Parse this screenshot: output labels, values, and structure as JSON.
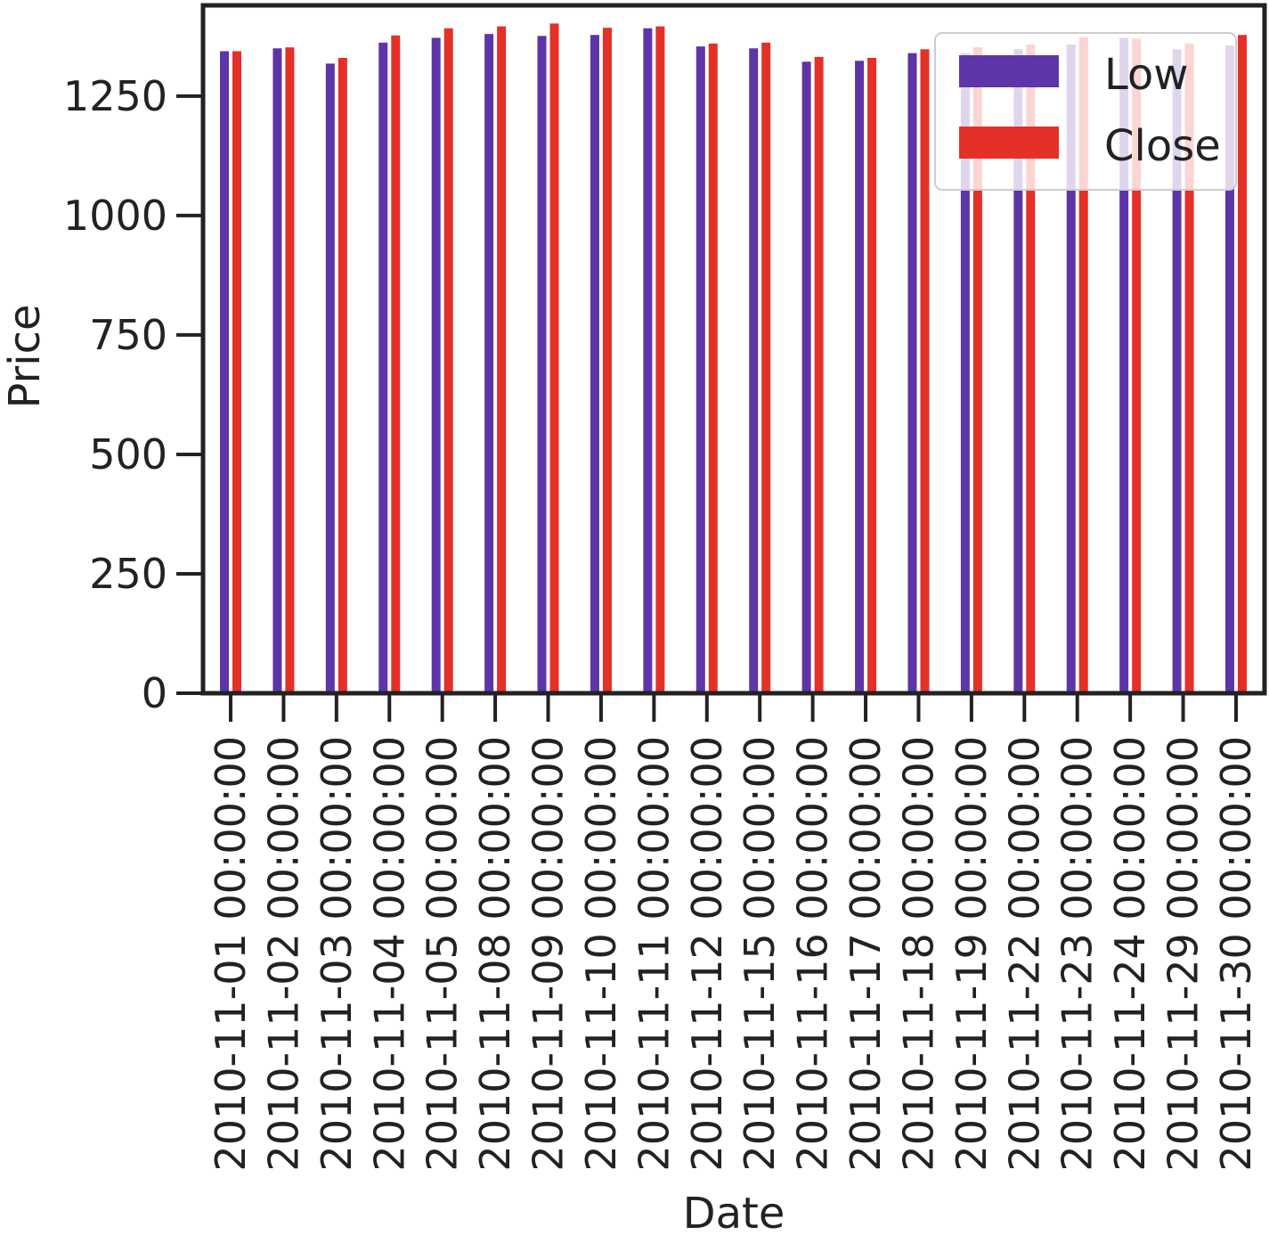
{
  "chart_data": {
    "type": "bar",
    "title": "",
    "xlabel": "Date",
    "ylabel": "Price",
    "ylim": [
      0,
      1440
    ],
    "yticks": [
      0,
      250,
      500,
      750,
      1000,
      1250
    ],
    "grid": false,
    "legend_position": "top-right",
    "categories": [
      "2010-11-01 00:00:00",
      "2010-11-02 00:00:00",
      "2010-11-03 00:00:00",
      "2010-11-04 00:00:00",
      "2010-11-05 00:00:00",
      "2010-11-08 00:00:00",
      "2010-11-09 00:00:00",
      "2010-11-10 00:00:00",
      "2010-11-11 00:00:00",
      "2010-11-12 00:00:00",
      "2010-11-15 00:00:00",
      "2010-11-16 00:00:00",
      "2010-11-17 00:00:00",
      "2010-11-18 00:00:00",
      "2010-11-19 00:00:00",
      "2010-11-22 00:00:00",
      "2010-11-23 00:00:00",
      "2010-11-24 00:00:00",
      "2010-11-29 00:00:00",
      "2010-11-30 00:00:00"
    ],
    "series": [
      {
        "name": "Low",
        "color": "#5e35a8",
        "values": [
          1344,
          1350,
          1318,
          1362,
          1372,
          1380,
          1376,
          1378,
          1392,
          1354,
          1350,
          1322,
          1324,
          1340,
          1340,
          1348,
          1358,
          1372,
          1348,
          1356
        ]
      },
      {
        "name": "Close",
        "color": "#e53027",
        "values": [
          1344,
          1352,
          1330,
          1377,
          1392,
          1396,
          1402,
          1393,
          1396,
          1360,
          1362,
          1332,
          1330,
          1348,
          1352,
          1358,
          1374,
          1370,
          1360,
          1378
        ]
      }
    ]
  }
}
